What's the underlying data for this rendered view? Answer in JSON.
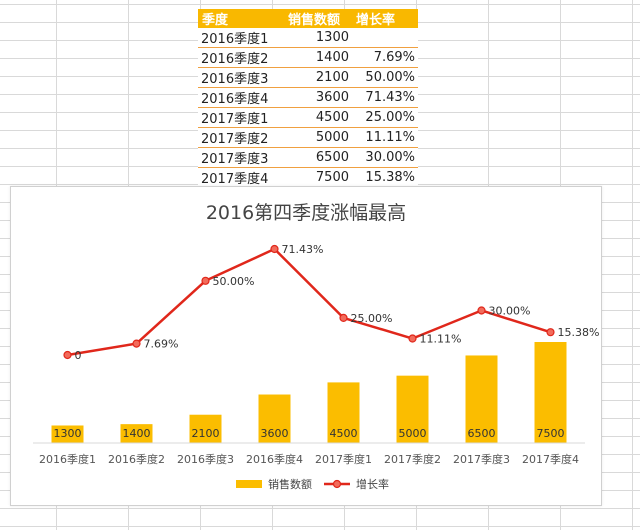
{
  "table": {
    "headers": [
      "季度",
      "销售数额",
      "增长率"
    ],
    "rows": [
      [
        "2016季度1",
        "1300",
        ""
      ],
      [
        "2016季度2",
        "1400",
        "7.69%"
      ],
      [
        "2016季度3",
        "2100",
        "50.00%"
      ],
      [
        "2016季度4",
        "3600",
        "71.43%"
      ],
      [
        "2017季度1",
        "4500",
        "25.00%"
      ],
      [
        "2017季度2",
        "5000",
        "11.11%"
      ],
      [
        "2017季度3",
        "6500",
        "30.00%"
      ],
      [
        "2017季度4",
        "7500",
        "15.38%"
      ]
    ]
  },
  "chart_data": {
    "type": "bar",
    "title": "2016第四季度涨幅最高",
    "categories": [
      "2016季度1",
      "2016季度2",
      "2016季度3",
      "2016季度4",
      "2017季度1",
      "2017季度2",
      "2017季度3",
      "2017季度4"
    ],
    "series": [
      {
        "name": "销售数额",
        "type": "bar",
        "color": "#fbbd00",
        "values": [
          1300,
          1400,
          2100,
          3600,
          4500,
          5000,
          6500,
          7500
        ],
        "labels": [
          "1300",
          "1400",
          "2100",
          "3600",
          "4500",
          "5000",
          "6500",
          "7500"
        ]
      },
      {
        "name": "增长率",
        "type": "line",
        "color": "#e0271b",
        "values": [
          0,
          7.69,
          50.0,
          71.43,
          25.0,
          11.11,
          30.0,
          15.38
        ],
        "labels": [
          "0",
          "7.69%",
          "50.00%",
          "71.43%",
          "25.00%",
          "11.11%",
          "30.00%",
          "15.38%"
        ]
      }
    ],
    "grid": false,
    "legend": "bottom"
  }
}
